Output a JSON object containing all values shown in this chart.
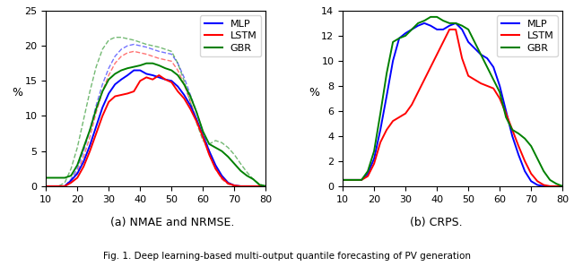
{
  "xlim": [
    10,
    80
  ],
  "subplot_a": {
    "ylim": [
      0,
      25
    ],
    "yticks": [
      0,
      5,
      10,
      15,
      20,
      25
    ],
    "ylabel": "%",
    "mlp_solid": {
      "x": [
        10,
        12,
        14,
        16,
        18,
        20,
        22,
        24,
        26,
        28,
        30,
        32,
        34,
        36,
        38,
        40,
        42,
        44,
        46,
        48,
        50,
        52,
        54,
        56,
        58,
        60,
        62,
        64,
        66,
        68,
        70,
        72,
        74,
        76,
        78,
        80
      ],
      "y": [
        0.0,
        0.0,
        0.0,
        0.0,
        0.8,
        1.8,
        3.5,
        5.8,
        8.5,
        11.2,
        13.2,
        14.5,
        15.2,
        15.8,
        16.5,
        16.5,
        16.0,
        15.8,
        15.5,
        15.2,
        15.0,
        14.2,
        13.0,
        11.5,
        9.5,
        7.2,
        5.0,
        3.0,
        1.5,
        0.5,
        0.1,
        0.0,
        0.0,
        0.0,
        0.0,
        0.0
      ],
      "color": "#0000ff"
    },
    "lstm_solid": {
      "x": [
        10,
        12,
        14,
        16,
        18,
        20,
        22,
        24,
        26,
        28,
        30,
        32,
        34,
        36,
        38,
        40,
        42,
        44,
        46,
        48,
        50,
        52,
        54,
        56,
        58,
        60,
        62,
        64,
        66,
        68,
        70,
        72,
        74,
        76,
        78,
        80
      ],
      "y": [
        0.0,
        0.0,
        0.0,
        0.0,
        0.5,
        1.2,
        2.8,
        5.0,
        7.5,
        10.0,
        12.0,
        12.8,
        13.0,
        13.2,
        13.5,
        15.0,
        15.5,
        15.2,
        15.8,
        15.2,
        14.8,
        13.5,
        12.5,
        11.0,
        9.2,
        7.0,
        4.5,
        2.5,
        1.2,
        0.4,
        0.1,
        0.0,
        0.0,
        0.0,
        0.0,
        0.0
      ],
      "color": "#ff0000"
    },
    "gbr_solid": {
      "x": [
        10,
        12,
        14,
        16,
        18,
        20,
        22,
        24,
        26,
        28,
        30,
        32,
        34,
        36,
        38,
        40,
        42,
        44,
        46,
        48,
        50,
        52,
        54,
        56,
        58,
        60,
        62,
        64,
        66,
        68,
        70,
        72,
        74,
        76,
        78,
        80
      ],
      "y": [
        1.2,
        1.2,
        1.2,
        1.2,
        1.5,
        3.0,
        5.5,
        8.0,
        11.0,
        13.5,
        15.2,
        16.0,
        16.5,
        16.8,
        17.0,
        17.2,
        17.5,
        17.5,
        17.2,
        16.8,
        16.5,
        15.8,
        14.5,
        12.8,
        10.5,
        7.8,
        6.0,
        5.5,
        5.0,
        4.2,
        3.2,
        2.2,
        1.5,
        1.0,
        0.2,
        0.0
      ],
      "color": "#008000"
    },
    "mlp_dashed": {
      "x": [
        10,
        12,
        14,
        16,
        18,
        20,
        22,
        24,
        26,
        28,
        30,
        32,
        34,
        36,
        38,
        40,
        42,
        44,
        46,
        48,
        50,
        52,
        54,
        56,
        58,
        60,
        62,
        64,
        66,
        68,
        70,
        72,
        74,
        76,
        78,
        80
      ],
      "y": [
        0.0,
        0.0,
        0.0,
        0.0,
        1.0,
        2.5,
        5.0,
        8.0,
        11.5,
        14.5,
        16.8,
        18.5,
        19.5,
        20.0,
        20.2,
        20.0,
        19.8,
        19.5,
        19.2,
        19.0,
        18.8,
        17.5,
        15.5,
        13.0,
        10.5,
        7.8,
        5.0,
        2.8,
        1.2,
        0.4,
        0.1,
        0.0,
        0.0,
        0.0,
        0.0,
        0.0
      ],
      "color": "#0000ff"
    },
    "lstm_dashed": {
      "x": [
        10,
        12,
        14,
        16,
        18,
        20,
        22,
        24,
        26,
        28,
        30,
        32,
        34,
        36,
        38,
        40,
        42,
        44,
        46,
        48,
        50,
        52,
        54,
        56,
        58,
        60,
        62,
        64,
        66,
        68,
        70,
        72,
        74,
        76,
        78,
        80
      ],
      "y": [
        0.0,
        0.0,
        0.0,
        0.0,
        0.8,
        2.0,
        4.2,
        7.0,
        10.5,
        13.5,
        15.8,
        17.5,
        18.5,
        19.0,
        19.2,
        19.0,
        18.8,
        18.5,
        18.2,
        18.0,
        17.8,
        16.5,
        14.5,
        12.0,
        9.5,
        7.0,
        4.5,
        2.5,
        1.0,
        0.3,
        0.0,
        0.0,
        0.0,
        0.0,
        0.0,
        0.0
      ],
      "color": "#ff0000"
    },
    "gbr_dashed": {
      "x": [
        10,
        12,
        14,
        16,
        18,
        20,
        22,
        24,
        26,
        28,
        30,
        32,
        34,
        36,
        38,
        40,
        42,
        44,
        46,
        48,
        50,
        52,
        54,
        56,
        58,
        60,
        62,
        64,
        66,
        68,
        70,
        72,
        74,
        76,
        78,
        80
      ],
      "y": [
        0.0,
        0.0,
        0.0,
        0.5,
        2.5,
        5.5,
        9.5,
        13.5,
        17.0,
        19.5,
        20.8,
        21.2,
        21.2,
        21.0,
        20.8,
        20.5,
        20.2,
        20.0,
        19.8,
        19.5,
        19.2,
        17.5,
        15.0,
        12.0,
        9.0,
        6.5,
        6.0,
        6.5,
        6.2,
        5.5,
        4.5,
        3.2,
        2.0,
        1.0,
        0.3,
        0.0
      ],
      "color": "#008000"
    }
  },
  "subplot_b": {
    "ylim": [
      0,
      14
    ],
    "yticks": [
      0,
      2,
      4,
      6,
      8,
      10,
      12,
      14
    ],
    "ylabel": "%",
    "mlp": {
      "x": [
        10,
        12,
        14,
        16,
        18,
        20,
        22,
        24,
        26,
        28,
        30,
        32,
        34,
        36,
        38,
        40,
        42,
        44,
        46,
        48,
        50,
        52,
        54,
        56,
        58,
        60,
        62,
        64,
        66,
        68,
        70,
        72,
        74,
        76,
        78,
        80
      ],
      "y": [
        0.5,
        0.5,
        0.5,
        0.5,
        1.0,
        2.2,
        4.5,
        7.2,
        10.0,
        11.8,
        12.2,
        12.5,
        12.8,
        13.0,
        12.8,
        12.5,
        12.5,
        12.8,
        13.0,
        12.5,
        11.5,
        11.0,
        10.5,
        10.2,
        9.5,
        8.0,
        6.0,
        4.0,
        2.5,
        1.2,
        0.4,
        0.1,
        0.0,
        0.0,
        0.0,
        0.0
      ],
      "color": "#0000ff"
    },
    "lstm": {
      "x": [
        10,
        12,
        14,
        16,
        18,
        20,
        22,
        24,
        26,
        28,
        30,
        32,
        34,
        36,
        38,
        40,
        42,
        44,
        46,
        48,
        50,
        52,
        54,
        56,
        58,
        60,
        62,
        64,
        66,
        68,
        70,
        72,
        74,
        76,
        78,
        80
      ],
      "y": [
        0.5,
        0.5,
        0.5,
        0.5,
        0.8,
        1.8,
        3.5,
        4.5,
        5.2,
        5.5,
        5.8,
        6.5,
        7.5,
        8.5,
        9.5,
        10.5,
        11.5,
        12.5,
        12.5,
        10.2,
        8.8,
        8.5,
        8.2,
        8.0,
        7.8,
        7.0,
        5.8,
        4.5,
        3.2,
        2.0,
        1.0,
        0.4,
        0.1,
        0.0,
        0.0,
        0.0
      ],
      "color": "#ff0000"
    },
    "gbr": {
      "x": [
        10,
        12,
        14,
        16,
        18,
        20,
        22,
        24,
        26,
        28,
        30,
        32,
        34,
        36,
        38,
        40,
        42,
        44,
        46,
        48,
        50,
        52,
        54,
        56,
        58,
        60,
        62,
        64,
        66,
        68,
        70,
        72,
        74,
        76,
        78,
        80
      ],
      "y": [
        0.5,
        0.5,
        0.5,
        0.5,
        1.2,
        2.8,
        5.8,
        9.0,
        11.5,
        11.8,
        12.0,
        12.5,
        13.0,
        13.2,
        13.5,
        13.5,
        13.2,
        13.0,
        13.0,
        12.8,
        12.5,
        11.5,
        10.5,
        9.5,
        8.5,
        7.5,
        5.5,
        4.5,
        4.2,
        3.8,
        3.2,
        2.2,
        1.2,
        0.5,
        0.2,
        0.0
      ],
      "color": "#008000"
    }
  },
  "legend_labels": [
    "MLP",
    "LSTM",
    "GBR"
  ],
  "legend_colors": [
    "#0000ff",
    "#ff0000",
    "#008000"
  ],
  "xticks": [
    10,
    20,
    30,
    40,
    50,
    60,
    70,
    80
  ],
  "caption_a": "(a) NMAE and NRMSE.",
  "caption_b": "(b) CRPS.",
  "fig_caption": "Fig. 1. Deep learning-based multi-output quantile forecasting of PV generation"
}
